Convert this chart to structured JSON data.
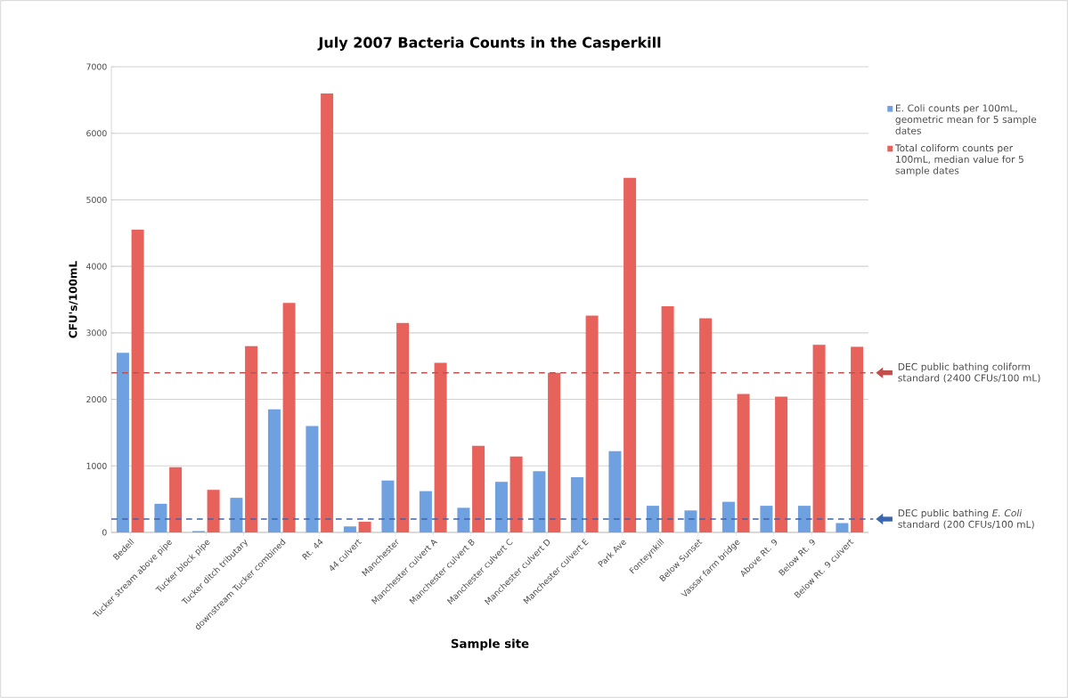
{
  "chart_data": {
    "type": "bar",
    "title": "July 2007 Bacteria Counts in the Casperkill",
    "xlabel": "Sample site",
    "ylabel": "CFU's/100mL",
    "categories": [
      "Bedell",
      "Tucker stream above pipe",
      "Tucker block pipe",
      "Tucker ditch tributary",
      "downstream Tucker combined",
      "Rt. 44",
      "44 culvert",
      "Manchester",
      "Manchester culvert A",
      "Manchester culvert B",
      "Manchester culvert C",
      "Manchester culvert D",
      "Manchester culvert E",
      "Park Ave",
      "Fonteynkill",
      "Below Sunset",
      "Vassar farm bridge",
      "Above Rt. 9",
      "Below Rt. 9",
      "Below Rt. 9 culvert"
    ],
    "series": [
      {
        "name": "E. Coli counts per 100mL, geometric mean for 5 sample dates",
        "color": "#6fa0e0",
        "values": [
          2700,
          430,
          20,
          520,
          1850,
          1600,
          90,
          780,
          620,
          370,
          760,
          920,
          830,
          1220,
          400,
          330,
          460,
          400,
          400,
          140
        ]
      },
      {
        "name": "Total coliform counts per 100mL, median value for 5 sample dates",
        "color": "#e8625c",
        "values": [
          4550,
          980,
          640,
          2800,
          3450,
          6600,
          160,
          3150,
          2550,
          1300,
          1140,
          2400,
          3260,
          5330,
          3400,
          3220,
          2080,
          2040,
          2820,
          2790
        ]
      }
    ],
    "ylim": [
      0,
      7000
    ],
    "yticks": [
      0,
      1000,
      2000,
      3000,
      4000,
      5000,
      6000,
      7000
    ],
    "grid": "y",
    "legend": "right",
    "ref_lines": [
      {
        "axis": "y",
        "value": 2400,
        "label": "DEC public bathing coliform standard (2400 CFUs/100 mL)",
        "color": "#c0504d",
        "line_style": "dashed"
      },
      {
        "axis": "y",
        "value": 200,
        "label": "DEC public bathing *E. Coli* standard (200 CFUs/100 mL)",
        "color": "#3a66b0",
        "line_style": "dashed"
      }
    ]
  }
}
